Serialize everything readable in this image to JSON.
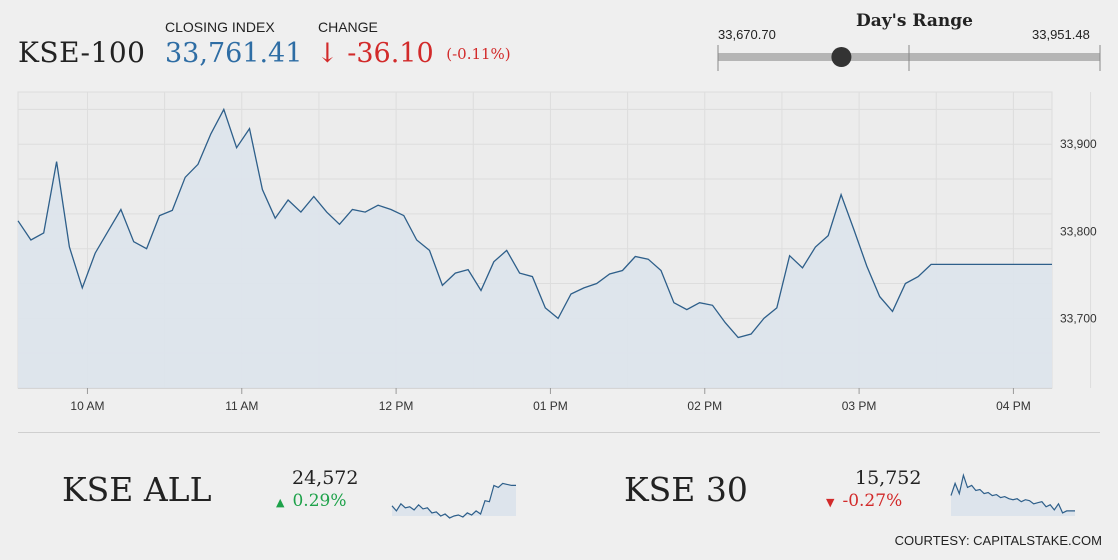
{
  "header": {
    "index_name": "KSE-100",
    "closing_label": "CLOSING INDEX",
    "closing_value": "33,761.41",
    "change_label": "CHANGE",
    "change_arrow": "↓",
    "change_value": "-36.10",
    "change_percent": "(-0.11%)"
  },
  "days_range": {
    "title": "Day's Range",
    "low": "33,670.70",
    "high": "33,951.48",
    "low_value": 33670.7,
    "high_value": 33951.48,
    "current_value": 33761.41
  },
  "chart_data": [
    {
      "type": "line",
      "x_ticks": [
        "10 AM",
        "11 AM",
        "12 PM",
        "01 PM",
        "02 PM",
        "03 PM",
        "04 PM"
      ],
      "y_ticks": [
        "33,700",
        "33,800",
        "33,900"
      ],
      "x_range": [
        "09:33",
        "16:15"
      ],
      "ylim": [
        33620,
        33960
      ],
      "grid": true,
      "series": [
        {
          "x": [
            "09:33",
            "09:38",
            "09:43",
            "09:48",
            "09:53",
            "09:58",
            "10:03",
            "10:08",
            "10:13",
            "10:18",
            "10:23",
            "10:28",
            "10:33",
            "10:38",
            "10:43",
            "10:48",
            "10:53",
            "10:58",
            "11:03",
            "11:08",
            "11:13",
            "11:18",
            "11:23",
            "11:28",
            "11:33",
            "11:38",
            "11:43",
            "11:48",
            "11:53",
            "11:58",
            "12:03",
            "12:08",
            "12:13",
            "12:18",
            "12:23",
            "12:28",
            "12:33",
            "12:38",
            "12:43",
            "12:48",
            "12:53",
            "12:58",
            "13:03",
            "13:08",
            "13:13",
            "13:18",
            "13:23",
            "13:28",
            "13:33",
            "13:38",
            "13:43",
            "13:48",
            "13:53",
            "13:58",
            "14:03",
            "14:08",
            "14:13",
            "14:18",
            "14:23",
            "14:28",
            "14:33",
            "14:38",
            "14:43",
            "14:48",
            "14:53",
            "14:58",
            "15:03",
            "15:08",
            "15:13",
            "15:18",
            "15:23",
            "15:28",
            "15:33",
            "15:38",
            "15:43",
            "15:48",
            "15:53",
            "15:58",
            "16:03",
            "16:08",
            "16:13",
            "16:15"
          ],
          "y": [
            33812,
            33790,
            33798,
            33880,
            33782,
            33735,
            33775,
            33800,
            33825,
            33788,
            33780,
            33818,
            33824,
            33862,
            33877,
            33912,
            33940,
            33896,
            33918,
            33848,
            33815,
            33836,
            33822,
            33840,
            33822,
            33808,
            33825,
            33822,
            33830,
            33825,
            33818,
            33790,
            33778,
            33738,
            33752,
            33756,
            33732,
            33765,
            33778,
            33752,
            33748,
            33712,
            33700,
            33728,
            33735,
            33740,
            33751,
            33755,
            33771,
            33768,
            33755,
            33718,
            33710,
            33718,
            33715,
            33695,
            33678,
            33682,
            33700,
            33712,
            33772,
            33758,
            33782,
            33795,
            33842,
            33802,
            33760,
            33725,
            33708,
            33740,
            33748,
            33762,
            33762,
            33762,
            33762,
            33762,
            33762,
            33762,
            33762,
            33762,
            33762,
            33762
          ]
        }
      ]
    },
    {
      "type": "line",
      "title": "KSE ALL",
      "value": "24,572",
      "change": "0.29%",
      "direction": "up",
      "series": [
        {
          "y": [
            40,
            45,
            38,
            42,
            41,
            44,
            39,
            43,
            42,
            47,
            46,
            50,
            48,
            52,
            50,
            49,
            51,
            47,
            49,
            45,
            48,
            35,
            36,
            20,
            22,
            18,
            19,
            20,
            20
          ]
        }
      ]
    },
    {
      "type": "line",
      "title": "KSE 30",
      "value": "15,752",
      "change": "-0.27%",
      "direction": "down",
      "series": [
        {
          "y": [
            30,
            18,
            28,
            10,
            22,
            20,
            25,
            24,
            28,
            27,
            30,
            29,
            32,
            31,
            33,
            34,
            33,
            36,
            34,
            35,
            38,
            37,
            36,
            41,
            39,
            44,
            38,
            47,
            45,
            45,
            45
          ]
        }
      ]
    }
  ],
  "courtesy": "COURTESY: CAPITALSTAKE.COM",
  "colors": {
    "line": "#2e5f8a",
    "area": "#dde4ec",
    "up": "#1ea24a",
    "down": "#d22a2a",
    "grid": "#dddddd",
    "range_track": "#b5b5b5",
    "range_handle": "#333333"
  }
}
